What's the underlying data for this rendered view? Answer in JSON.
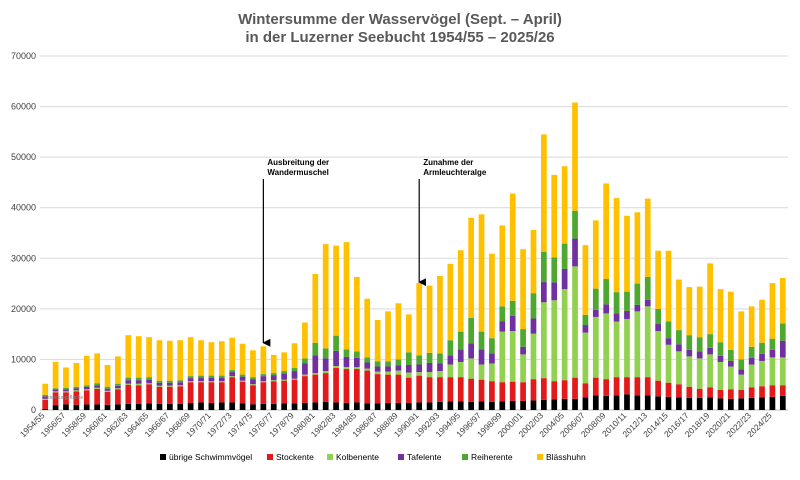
{
  "chart_data": {
    "type": "bar",
    "stacked": true,
    "title_line1": "Wintersumme der Wasservögel (Sept. – April)",
    "title_line2": "in der Luzerner Seebucht 1954/55 – 2025/26",
    "ylim": [
      0,
      70000
    ],
    "yticks": [
      "0",
      "10000",
      "20000",
      "30000",
      "40000",
      "50000",
      "60000",
      "70000"
    ],
    "grid": true,
    "legend_position": "bottom",
    "chart_area_note": "Zeichnungsfläche",
    "annotations": [
      {
        "line1": "Ausbreitung der",
        "line2": "Wandermuschel",
        "category": "1975/76",
        "arrow_to": 12500
      },
      {
        "line1": "Zunahme der",
        "line2": "Armleuchteralge",
        "category": "1990/91",
        "arrow_to": 24500
      }
    ],
    "categories": [
      "1954/55",
      "1955/56",
      "1956/57",
      "1957/58",
      "1958/59",
      "1959/60",
      "1960/61",
      "1961/62",
      "1962/63",
      "1963/64",
      "1964/65",
      "1965/66",
      "1966/67",
      "1967/68",
      "1968/69",
      "1969/70",
      "1970/71",
      "1971/72",
      "1972/73",
      "1973/74",
      "1974/75",
      "1975/76",
      "1976/77",
      "1977/78",
      "1978/79",
      "1979/80",
      "1980/81",
      "1981/82",
      "1982/83",
      "1983/84",
      "1984/85",
      "1985/86",
      "1986/87",
      "1987/88",
      "1988/89",
      "1989/90",
      "1990/91",
      "1991/92",
      "1992/93",
      "1993/94",
      "1994/95",
      "1995/96",
      "1996/97",
      "1997/98",
      "1998/99",
      "1999/00",
      "2000/01",
      "2001/02",
      "2002/03",
      "2003/04",
      "2004/05",
      "2005/06",
      "2006/07",
      "2007/08",
      "2008/09",
      "2009/10",
      "2010/11",
      "2011/12",
      "2012/13",
      "2013/14",
      "2014/15",
      "2015/16",
      "2016/17",
      "2017/18",
      "2018/19",
      "2019/20",
      "2020/21",
      "2021/22",
      "2022/23",
      "2023/24",
      "2024/25",
      "2025/26"
    ],
    "series": [
      {
        "name": "übrige Schwimmvögel",
        "color": "#000000",
        "values": [
          200,
          900,
          1100,
          1000,
          1100,
          1100,
          1000,
          1100,
          1200,
          1200,
          1300,
          1200,
          1200,
          1200,
          1400,
          1500,
          1400,
          1500,
          1500,
          1300,
          1100,
          1200,
          1200,
          1300,
          1300,
          1400,
          1500,
          1600,
          1500,
          1400,
          1500,
          1300,
          1300,
          1400,
          1400,
          1400,
          1500,
          1500,
          1600,
          1700,
          1700,
          1600,
          1700,
          1600,
          1700,
          1800,
          1800,
          1900,
          2000,
          2100,
          2200,
          2200,
          2500,
          2900,
          2800,
          2900,
          3100,
          2900,
          2900,
          2700,
          2600,
          2500,
          2400,
          2400,
          2500,
          2300,
          2200,
          2300,
          2400,
          2500,
          2600,
          2800
        ]
      },
      {
        "name": "Stockente",
        "color": "#e31a1c",
        "values": [
          1800,
          2600,
          2400,
          2700,
          2800,
          3100,
          2600,
          3000,
          3800,
          3700,
          3800,
          3400,
          3400,
          3500,
          4100,
          4000,
          4100,
          4000,
          5000,
          4300,
          3800,
          4300,
          4500,
          4500,
          4700,
          5300,
          5500,
          5700,
          6800,
          6700,
          6600,
          6500,
          5800,
          5600,
          5600,
          5000,
          5300,
          5000,
          4900,
          4800,
          4800,
          4600,
          4300,
          4100,
          3800,
          3800,
          3700,
          4200,
          4300,
          3600,
          3700,
          4200,
          2800,
          3500,
          3300,
          3600,
          3400,
          3600,
          3600,
          3100,
          2800,
          2600,
          2200,
          1800,
          2000,
          1700,
          1900,
          1700,
          2100,
          2200,
          2300,
          2100
        ]
      },
      {
        "name": "Kolbenente",
        "color": "#92d050",
        "values": [
          200,
          200,
          200,
          200,
          200,
          200,
          200,
          200,
          200,
          300,
          200,
          200,
          200,
          200,
          200,
          200,
          200,
          200,
          200,
          200,
          200,
          200,
          200,
          200,
          200,
          300,
          300,
          400,
          400,
          400,
          400,
          400,
          500,
          600,
          800,
          1000,
          700,
          1000,
          1200,
          2500,
          3000,
          4000,
          3000,
          3500,
          10000,
          10000,
          5500,
          9000,
          15000,
          16000,
          18000,
          22000,
          10000,
          12000,
          13000,
          11000,
          11500,
          13000,
          14000,
          9800,
          7500,
          6500,
          6000,
          6000,
          6500,
          5500,
          4500,
          3000,
          4500,
          5000,
          5500,
          5500
        ]
      },
      {
        "name": "Tafelente",
        "color": "#7030a0",
        "values": [
          500,
          400,
          400,
          400,
          500,
          500,
          400,
          500,
          700,
          700,
          700,
          600,
          600,
          600,
          600,
          700,
          700,
          700,
          800,
          800,
          1000,
          1000,
          1000,
          1200,
          1500,
          2200,
          3500,
          2500,
          3000,
          2000,
          1800,
          1200,
          1000,
          1000,
          1000,
          1500,
          1500,
          1800,
          1500,
          1800,
          2500,
          3000,
          3000,
          2000,
          2000,
          3000,
          1500,
          3000,
          4000,
          3500,
          4000,
          5500,
          1500,
          1400,
          1800,
          1600,
          1600,
          1300,
          1300,
          1400,
          1300,
          1400,
          1300,
          1400,
          1300,
          1200,
          1100,
          1000,
          1300,
          1400,
          1500,
          3300
        ]
      },
      {
        "name": "Reiherente",
        "color": "#4ea72e",
        "values": [
          300,
          200,
          300,
          300,
          300,
          400,
          400,
          400,
          500,
          500,
          500,
          400,
          400,
          400,
          400,
          400,
          400,
          400,
          400,
          400,
          400,
          400,
          400,
          500,
          600,
          1000,
          2500,
          2000,
          3000,
          1500,
          1300,
          1000,
          1000,
          1000,
          1200,
          2500,
          1800,
          2000,
          2000,
          3000,
          3500,
          5000,
          3500,
          3000,
          3000,
          3000,
          3500,
          5000,
          6000,
          5000,
          5000,
          5500,
          2000,
          4200,
          5000,
          4200,
          3800,
          4200,
          4500,
          3000,
          3300,
          2800,
          2900,
          2800,
          2700,
          2700,
          2200,
          2000,
          2200,
          2200,
          2200,
          3400
        ]
      },
      {
        "name": "Blässhuhn",
        "color": "#ffc000",
        "values": [
          2200,
          5200,
          4000,
          4700,
          5800,
          5900,
          4300,
          5400,
          8400,
          8200,
          7900,
          8000,
          7900,
          7900,
          7700,
          7000,
          6600,
          6800,
          6400,
          6100,
          5300,
          5500,
          3600,
          3700,
          4900,
          7100,
          13600,
          20600,
          17800,
          21200,
          14700,
          11600,
          8200,
          9900,
          11100,
          7500,
          14300,
          13300,
          15300,
          15100,
          16100,
          19800,
          23200,
          16700,
          16000,
          21200,
          15800,
          12500,
          23200,
          16300,
          15300,
          21400,
          13800,
          13500,
          18900,
          18600,
          15000,
          14100,
          15500,
          11500,
          14000,
          10000,
          9500,
          10000,
          14000,
          10500,
          11500,
          9500,
          8000,
          8500,
          11000,
          9000
        ]
      }
    ]
  }
}
